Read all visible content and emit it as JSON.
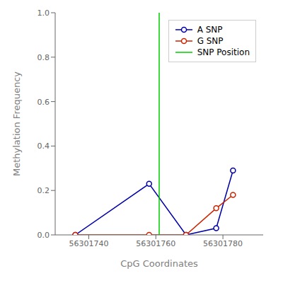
{
  "chart_data": {
    "type": "line",
    "x_label": "CpG Coordinates",
    "y_label": "Methylation Frequency",
    "x": [
      56301736,
      56301758,
      56301769,
      56301778,
      56301783
    ],
    "series": [
      {
        "name": "A SNP",
        "color": "#0000aa",
        "marker": "circle",
        "values": [
          0.0,
          0.23,
          0.0,
          0.03,
          0.29
        ]
      },
      {
        "name": "G SNP",
        "color": "#cc2200",
        "marker": "circle",
        "values": [
          0.0,
          0.0,
          0.0,
          0.12,
          0.18
        ]
      }
    ],
    "vertical_line": {
      "name": "SNP Position",
      "x": 56301761,
      "color": "#00cc00"
    },
    "xlim": [
      56301730,
      56301792
    ],
    "xticks": [
      56301740,
      56301760,
      56301780
    ],
    "ylim": [
      0.0,
      1.0
    ],
    "yticks": [
      {
        "value": 0.0,
        "label": "0.0"
      },
      0.2,
      0.4,
      0.6,
      0.8,
      {
        "value": 1.0,
        "label": "1.0"
      }
    ],
    "legend": "upper right",
    "grid": false
  }
}
